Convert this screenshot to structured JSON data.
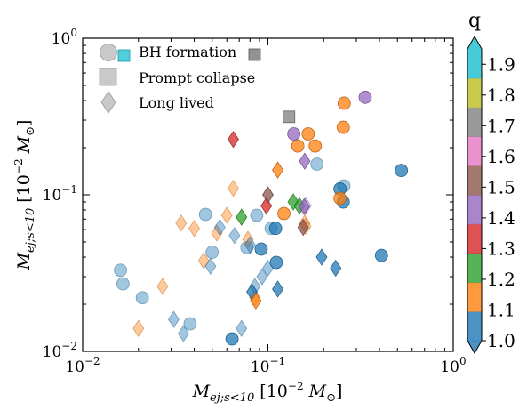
{
  "chart_data": {
    "type": "scatter",
    "xlabel": "M_ej;s<10 [10^-2 M_⊙]",
    "ylabel": "M_ej;s<10 [10^-2 M_⊙]",
    "xscale": "log",
    "yscale": "log",
    "xlim": [
      0.01,
      1
    ],
    "ylim": [
      0.01,
      1
    ],
    "x_ticks": [
      {
        "value": 0.01,
        "base": "10",
        "exp": "−2"
      },
      {
        "value": 0.1,
        "base": "10",
        "exp": "−1"
      },
      {
        "value": 1,
        "base": "10",
        "exp": "0"
      }
    ],
    "y_ticks": [
      {
        "value": 0.01,
        "base": "10",
        "exp": "−2"
      },
      {
        "value": 0.1,
        "base": "10",
        "exp": "−1"
      },
      {
        "value": 1,
        "base": "10",
        "exp": "0"
      }
    ],
    "legend": {
      "placement": "top-left",
      "entries": [
        {
          "label": "BH formation",
          "marker": "circle+square"
        },
        {
          "label": "Prompt collapse",
          "marker": "square"
        },
        {
          "label": "Long lived",
          "marker": "diamond"
        }
      ]
    },
    "colorbar": {
      "title": "q",
      "min": 1.0,
      "max": 1.95,
      "ticks": [
        "1.0",
        "1.1",
        "1.2",
        "1.3",
        "1.4",
        "1.5",
        "1.6",
        "1.7",
        "1.8",
        "1.9"
      ],
      "colors": [
        "#1f77b4",
        "#ff7f0e",
        "#2ca02c",
        "#d62728",
        "#9467bd",
        "#8c564b",
        "#e377c2",
        "#7f7f7f",
        "#bcbd22",
        "#17becf"
      ]
    },
    "points": [
      {
        "x": 0.016,
        "y": 0.033,
        "marker": "circle",
        "q": 1.0,
        "faded": true
      },
      {
        "x": 0.0165,
        "y": 0.027,
        "marker": "circle",
        "q": 1.0,
        "faded": true
      },
      {
        "x": 0.021,
        "y": 0.022,
        "marker": "circle",
        "q": 1.0,
        "faded": true
      },
      {
        "x": 0.038,
        "y": 0.015,
        "marker": "circle",
        "q": 1.0,
        "faded": true
      },
      {
        "x": 0.046,
        "y": 0.075,
        "marker": "circle",
        "q": 1.0,
        "faded": true
      },
      {
        "x": 0.05,
        "y": 0.043,
        "marker": "circle",
        "q": 1.0,
        "faded": true
      },
      {
        "x": 0.077,
        "y": 0.046,
        "marker": "circle",
        "q": 1.0,
        "faded": true
      },
      {
        "x": 0.087,
        "y": 0.074,
        "marker": "circle",
        "q": 1.0,
        "faded": true
      },
      {
        "x": 0.104,
        "y": 0.061,
        "marker": "circle",
        "q": 1.0,
        "faded": true
      },
      {
        "x": 0.184,
        "y": 0.157,
        "marker": "circle",
        "q": 1.0,
        "faded": true
      },
      {
        "x": 0.257,
        "y": 0.114,
        "marker": "circle",
        "q": 1.0,
        "faded": true
      },
      {
        "x": 0.02,
        "y": 0.014,
        "marker": "diamond",
        "q": 1.1,
        "faded": true
      },
      {
        "x": 0.027,
        "y": 0.026,
        "marker": "diamond",
        "q": 1.1,
        "faded": true
      },
      {
        "x": 0.034,
        "y": 0.066,
        "marker": "diamond",
        "q": 1.1,
        "faded": true
      },
      {
        "x": 0.04,
        "y": 0.061,
        "marker": "diamond",
        "q": 1.1,
        "faded": true
      },
      {
        "x": 0.045,
        "y": 0.038,
        "marker": "diamond",
        "q": 1.1,
        "faded": true
      },
      {
        "x": 0.053,
        "y": 0.057,
        "marker": "diamond",
        "q": 1.1,
        "faded": true
      },
      {
        "x": 0.06,
        "y": 0.074,
        "marker": "diamond",
        "q": 1.1,
        "faded": true
      },
      {
        "x": 0.065,
        "y": 0.11,
        "marker": "diamond",
        "q": 1.1,
        "faded": true
      },
      {
        "x": 0.078,
        "y": 0.052,
        "marker": "diamond",
        "q": 1.1,
        "faded": true
      },
      {
        "x": 0.085,
        "y": 0.022,
        "marker": "diamond",
        "q": 1.1,
        "faded": true
      },
      {
        "x": 0.158,
        "y": 0.066,
        "marker": "diamond",
        "q": 1.1,
        "faded": true
      },
      {
        "x": 0.16,
        "y": 0.063,
        "marker": "diamond",
        "q": 1.1,
        "faded": true
      },
      {
        "x": 0.031,
        "y": 0.016,
        "marker": "diamond",
        "q": 1.0,
        "faded": true
      },
      {
        "x": 0.035,
        "y": 0.013,
        "marker": "diamond",
        "q": 1.0,
        "faded": true
      },
      {
        "x": 0.049,
        "y": 0.035,
        "marker": "diamond",
        "q": 1.0,
        "faded": true
      },
      {
        "x": 0.055,
        "y": 0.062,
        "marker": "diamond",
        "q": 1.0,
        "faded": true
      },
      {
        "x": 0.066,
        "y": 0.055,
        "marker": "diamond",
        "q": 1.0,
        "faded": true
      },
      {
        "x": 0.072,
        "y": 0.014,
        "marker": "diamond",
        "q": 1.0,
        "faded": true
      },
      {
        "x": 0.08,
        "y": 0.048,
        "marker": "diamond",
        "q": 1.0,
        "faded": true
      },
      {
        "x": 0.085,
        "y": 0.026,
        "marker": "diamond",
        "q": 1.0,
        "faded": true
      },
      {
        "x": 0.093,
        "y": 0.03,
        "marker": "diamond",
        "q": 1.0,
        "faded": true
      },
      {
        "x": 0.1,
        "y": 0.034,
        "marker": "diamond",
        "q": 1.0,
        "faded": true
      },
      {
        "x": 0.16,
        "y": 0.085,
        "marker": "diamond",
        "q": 1.4,
        "faded": true
      },
      {
        "x": 0.064,
        "y": 0.012,
        "marker": "circle",
        "q": 1.0
      },
      {
        "x": 0.092,
        "y": 0.045,
        "marker": "circle",
        "q": 1.0
      },
      {
        "x": 0.11,
        "y": 0.061,
        "marker": "circle",
        "q": 1.0
      },
      {
        "x": 0.111,
        "y": 0.037,
        "marker": "circle",
        "q": 1.0
      },
      {
        "x": 0.245,
        "y": 0.109,
        "marker": "circle",
        "q": 1.0
      },
      {
        "x": 0.255,
        "y": 0.09,
        "marker": "circle",
        "q": 1.0
      },
      {
        "x": 0.41,
        "y": 0.041,
        "marker": "circle",
        "q": 1.0
      },
      {
        "x": 0.525,
        "y": 0.143,
        "marker": "circle",
        "q": 1.0
      },
      {
        "x": 0.122,
        "y": 0.076,
        "marker": "circle",
        "q": 1.1
      },
      {
        "x": 0.145,
        "y": 0.205,
        "marker": "circle",
        "q": 1.1
      },
      {
        "x": 0.165,
        "y": 0.245,
        "marker": "circle",
        "q": 1.1
      },
      {
        "x": 0.18,
        "y": 0.205,
        "marker": "circle",
        "q": 1.1
      },
      {
        "x": 0.245,
        "y": 0.095,
        "marker": "circle",
        "q": 1.1
      },
      {
        "x": 0.255,
        "y": 0.27,
        "marker": "circle",
        "q": 1.1
      },
      {
        "x": 0.258,
        "y": 0.385,
        "marker": "circle",
        "q": 1.1
      },
      {
        "x": 0.138,
        "y": 0.245,
        "marker": "circle",
        "q": 1.4
      },
      {
        "x": 0.335,
        "y": 0.42,
        "marker": "circle",
        "q": 1.4
      },
      {
        "x": 0.13,
        "y": 0.315,
        "marker": "square",
        "q": 1.7
      },
      {
        "x": 0.082,
        "y": 0.024,
        "marker": "diamond",
        "q": 1.0
      },
      {
        "x": 0.113,
        "y": 0.025,
        "marker": "diamond",
        "q": 1.0
      },
      {
        "x": 0.195,
        "y": 0.04,
        "marker": "diamond",
        "q": 1.0
      },
      {
        "x": 0.232,
        "y": 0.034,
        "marker": "diamond",
        "q": 1.0
      },
      {
        "x": 0.086,
        "y": 0.021,
        "marker": "diamond",
        "q": 1.1
      },
      {
        "x": 0.113,
        "y": 0.144,
        "marker": "diamond",
        "q": 1.1
      },
      {
        "x": 0.072,
        "y": 0.072,
        "marker": "diamond",
        "q": 1.2
      },
      {
        "x": 0.137,
        "y": 0.09,
        "marker": "diamond",
        "q": 1.2
      },
      {
        "x": 0.148,
        "y": 0.085,
        "marker": "diamond",
        "q": 1.2
      },
      {
        "x": 0.065,
        "y": 0.226,
        "marker": "diamond",
        "q": 1.3
      },
      {
        "x": 0.098,
        "y": 0.085,
        "marker": "diamond",
        "q": 1.3
      },
      {
        "x": 0.157,
        "y": 0.084,
        "marker": "diamond",
        "q": 1.4
      },
      {
        "x": 0.158,
        "y": 0.164,
        "marker": "diamond",
        "q": 1.4
      },
      {
        "x": 0.1,
        "y": 0.1,
        "marker": "diamond",
        "q": 1.5
      },
      {
        "x": 0.155,
        "y": 0.062,
        "marker": "diamond",
        "q": 1.5
      }
    ]
  }
}
